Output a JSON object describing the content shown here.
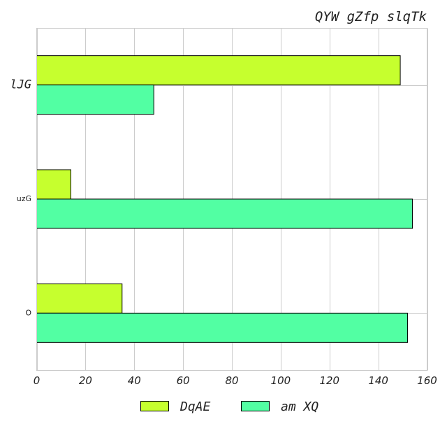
{
  "chart_data": {
    "type": "bar",
    "orientation": "horizontal",
    "title": "QYW gZfp slqTk",
    "categories": [
      "lJG",
      "uzG",
      "O"
    ],
    "series": [
      {
        "name": "DqAE",
        "values": [
          149,
          14,
          35
        ],
        "color": "#c6ff2e"
      },
      {
        "name": "am XQ",
        "values": [
          48,
          154,
          152
        ],
        "color": "#52ffa3"
      }
    ],
    "xlim": [
      0,
      160
    ],
    "xticks": [
      0,
      20,
      40,
      60,
      80,
      100,
      120,
      140,
      160
    ],
    "grid": true,
    "legend": "bottom-center"
  }
}
